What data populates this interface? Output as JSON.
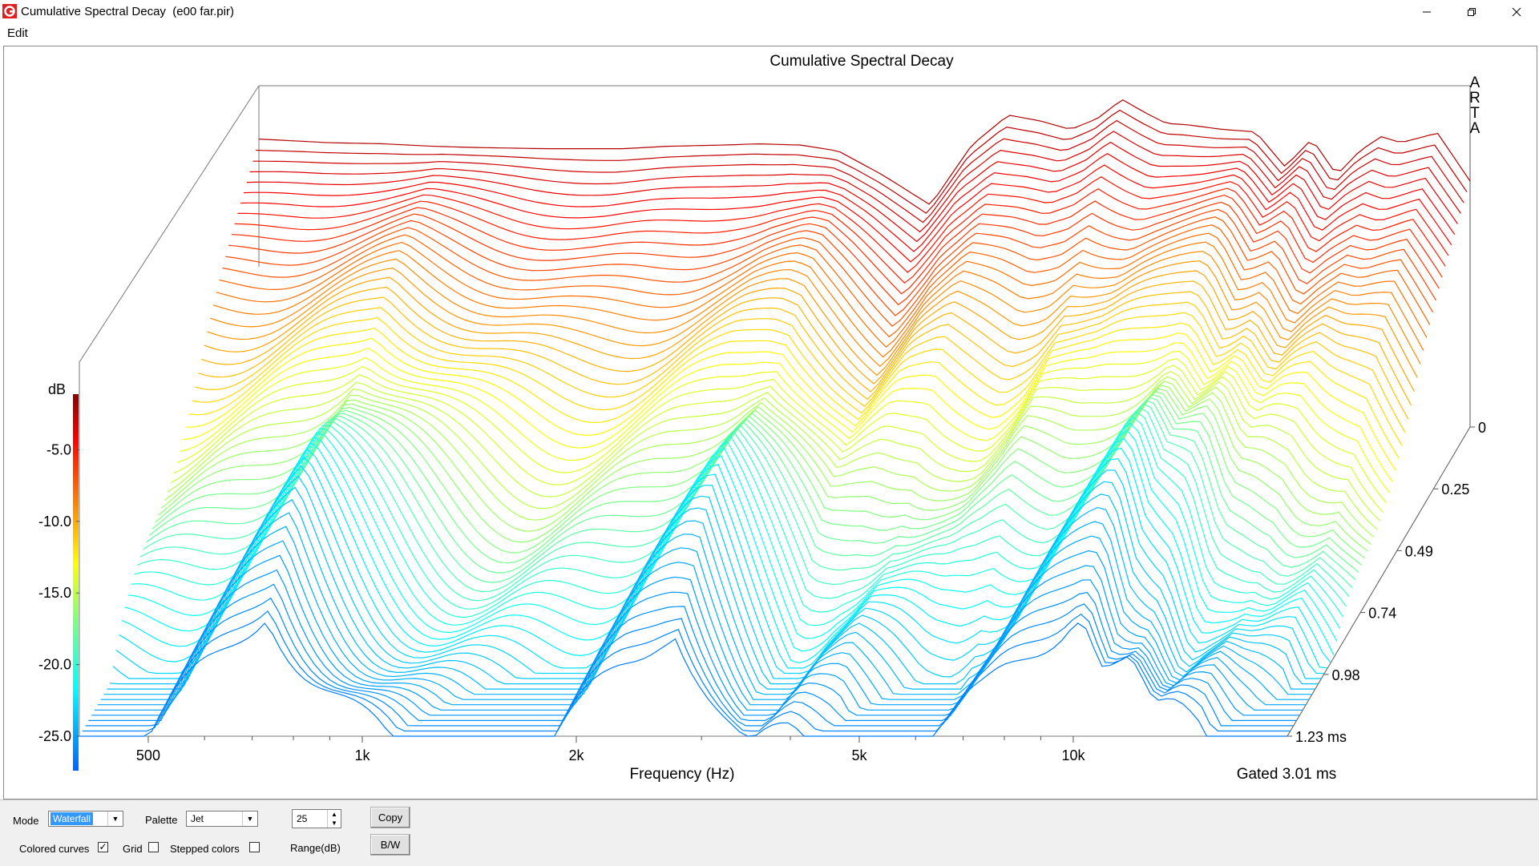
{
  "window": {
    "title": "Cumulative Spectral Decay  (e00 far.pir)",
    "minimize": "minimize",
    "restore": "restore",
    "close": "close"
  },
  "menu": {
    "items": [
      "Edit"
    ]
  },
  "chart": {
    "title": "Cumulative Spectral Decay",
    "brand": [
      "A",
      "R",
      "T",
      "A"
    ],
    "xlabel": "Frequency (Hz)",
    "gated_label": "Gated 3.01 ms",
    "colorbar_label": "dB",
    "colors": {
      "hot": "#d40000",
      "cold": "#0050ff"
    }
  },
  "chart_data": {
    "type": "waterfall",
    "title": "Cumulative Spectral Decay",
    "xlabel": "Frequency (Hz)",
    "zlabel": "dB",
    "x_ticks": [
      "500",
      "1k",
      "2k",
      "5k",
      "10k"
    ],
    "y_ticks": [
      "-5.0",
      "-10.0",
      "-15.0",
      "-20.0",
      "-25.0"
    ],
    "time_ticks": [
      "0",
      "0.25",
      "0.49",
      "0.74",
      "0.98",
      "1.23 ms"
    ],
    "ylim": [
      -25,
      0
    ],
    "time_range_ms": [
      0,
      1.23
    ],
    "gated_ms": 3.01,
    "palette": "Jet",
    "front_slice": {
      "frequency_hz": [
        400,
        500,
        600,
        700,
        800,
        1000,
        1100,
        1300,
        1500,
        1800,
        2000,
        2300,
        2600,
        3000,
        3500,
        4000,
        4500,
        5000,
        5500,
        6000,
        6500,
        7000,
        7500,
        8000,
        9000,
        10000,
        11000,
        12000,
        13000,
        14000,
        15000,
        16000,
        18000,
        20000
      ],
      "db": [
        -1.0,
        -1.3,
        -1.4,
        -1.6,
        -1.7,
        -1.8,
        -1.8,
        -1.8,
        -1.6,
        -1.5,
        -1.4,
        -1.5,
        -2.0,
        -4.0,
        -6.5,
        -1.5,
        1.0,
        0.5,
        -0.2,
        0.7,
        2.3,
        1.2,
        0.3,
        0.2,
        -0.2,
        -0.4,
        -3.3,
        -1.0,
        -4.0,
        -2.0,
        -0.8,
        -1.3,
        -0.5,
        -4.5
      ]
    }
  },
  "controls": {
    "mode_label": "Mode",
    "mode_value": "Waterfall",
    "palette_label": "Palette",
    "palette_value": "Jet",
    "range_value": "25",
    "range_label": "Range(dB)",
    "colored_curves_label": "Colored curves",
    "colored_curves_checked": true,
    "grid_label": "Grid",
    "grid_checked": false,
    "stepped_colors_label": "Stepped colors",
    "stepped_colors_checked": false,
    "copy_label": "Copy",
    "bw_label": "B/W"
  }
}
